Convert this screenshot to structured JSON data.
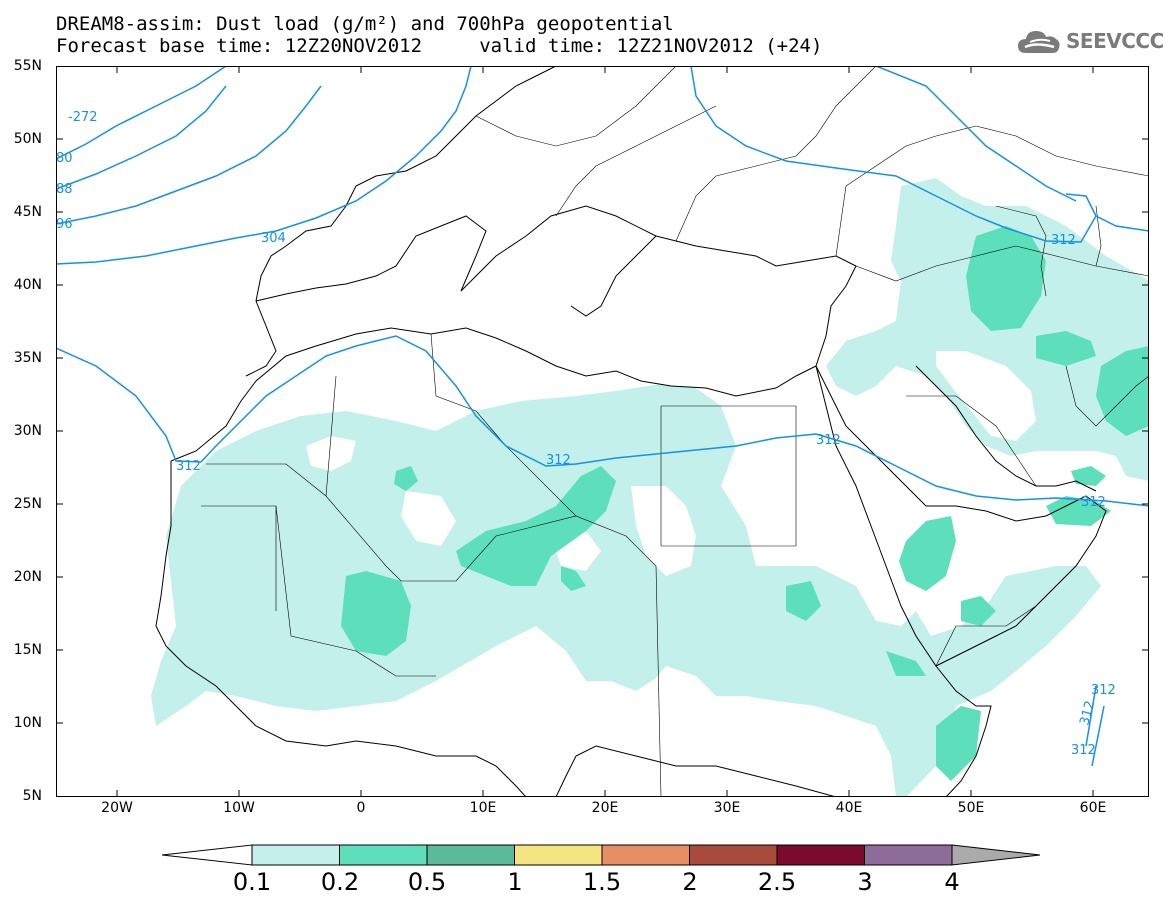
{
  "title": {
    "line1": "DREAM8-assim: Dust load (g/m²) and 700hPa geopotential",
    "line2": "Forecast base time: 12Z20NOV2012     valid time: 12Z21NOV2012 (+24)"
  },
  "logo": {
    "text": "SEEVCCC",
    "icon": "cloud-icon"
  },
  "map": {
    "lat_labels": [
      "55N",
      "50N",
      "45N",
      "40N",
      "35N",
      "30N",
      "25N",
      "20N",
      "15N",
      "10N",
      "5N"
    ],
    "lon_labels": [
      "20W",
      "10W",
      "0",
      "10E",
      "20E",
      "30E",
      "40E",
      "50E",
      "60E"
    ],
    "lon_range": [
      -25,
      65
    ],
    "lat_range": [
      5,
      55
    ],
    "contour_labels": [
      "-272",
      "80",
      "88",
      "96",
      "304",
      "312",
      "312",
      "312",
      "312",
      "312",
      "312",
      "312",
      "312"
    ]
  },
  "colorbar": {
    "labels": [
      "0.1",
      "0.2",
      "0.5",
      "1",
      "1.5",
      "2",
      "2.5",
      "3",
      "4"
    ],
    "colors": [
      "#c3f0ea",
      "#5ddfbb",
      "#5cb999",
      "#f4e581",
      "#e88e65",
      "#a84b3d",
      "#7b0a2d",
      "#8e6c9a"
    ]
  },
  "colors": {
    "dust_low": "#c3f0ea",
    "dust_mid": "#5ddfbb",
    "contour": "#1591e8",
    "coast": "#000000"
  }
}
